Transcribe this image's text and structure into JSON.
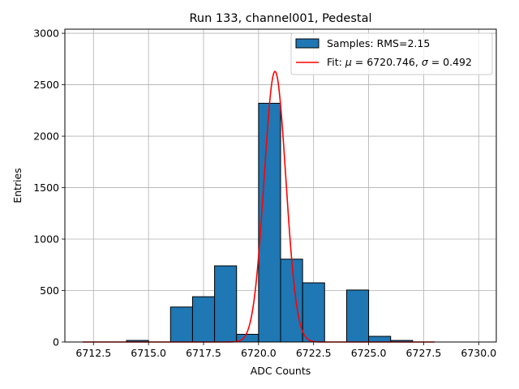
{
  "chart_data": {
    "type": "bar",
    "title": "Run 133, channel001, Pedestal",
    "xlabel": "ADC Counts",
    "ylabel": "Entries",
    "xlim": [
      6711.2,
      6730.8
    ],
    "ylim": [
      0,
      3040
    ],
    "xticks": [
      6712.5,
      6715.0,
      6717.5,
      6720.0,
      6722.5,
      6725.0,
      6727.5,
      6730.0
    ],
    "xtick_labels": [
      "6712.5",
      "6715.0",
      "6717.5",
      "6720.0",
      "6722.5",
      "6725.0",
      "6727.5",
      "6730.0"
    ],
    "yticks": [
      0,
      500,
      1000,
      1500,
      2000,
      2500,
      3000
    ],
    "ytick_labels": [
      "0",
      "500",
      "1000",
      "1500",
      "2000",
      "2500",
      "3000"
    ],
    "grid": true,
    "legend_position": "top-right",
    "histogram": {
      "name": "Samples: RMS=2.15",
      "color": "#1f77b4",
      "edge_color": "#000000",
      "bins": [
        {
          "x0": 6714.0,
          "x1": 6715.0,
          "count": 15
        },
        {
          "x0": 6716.0,
          "x1": 6717.0,
          "count": 340
        },
        {
          "x0": 6717.0,
          "x1": 6718.0,
          "count": 440
        },
        {
          "x0": 6718.0,
          "x1": 6719.0,
          "count": 740
        },
        {
          "x0": 6719.0,
          "x1": 6720.0,
          "count": 75
        },
        {
          "x0": 6720.0,
          "x1": 6721.0,
          "count": 2320
        },
        {
          "x0": 6721.0,
          "x1": 6722.0,
          "count": 805
        },
        {
          "x0": 6722.0,
          "x1": 6723.0,
          "count": 575
        },
        {
          "x0": 6724.0,
          "x1": 6725.0,
          "count": 505
        },
        {
          "x0": 6725.0,
          "x1": 6726.0,
          "count": 55
        },
        {
          "x0": 6726.0,
          "x1": 6727.0,
          "count": 15
        }
      ]
    },
    "fit": {
      "name_prefix": "Fit: ",
      "name_mu": "μ",
      "name_mid": " = 6720.746, ",
      "name_sigma": "σ",
      "name_suffix": " = 0.492",
      "color": "#ff0000",
      "mu": 6720.746,
      "sigma": 0.492,
      "amplitude": 2630,
      "x_range": [
        6712.0,
        6728.0
      ]
    }
  }
}
